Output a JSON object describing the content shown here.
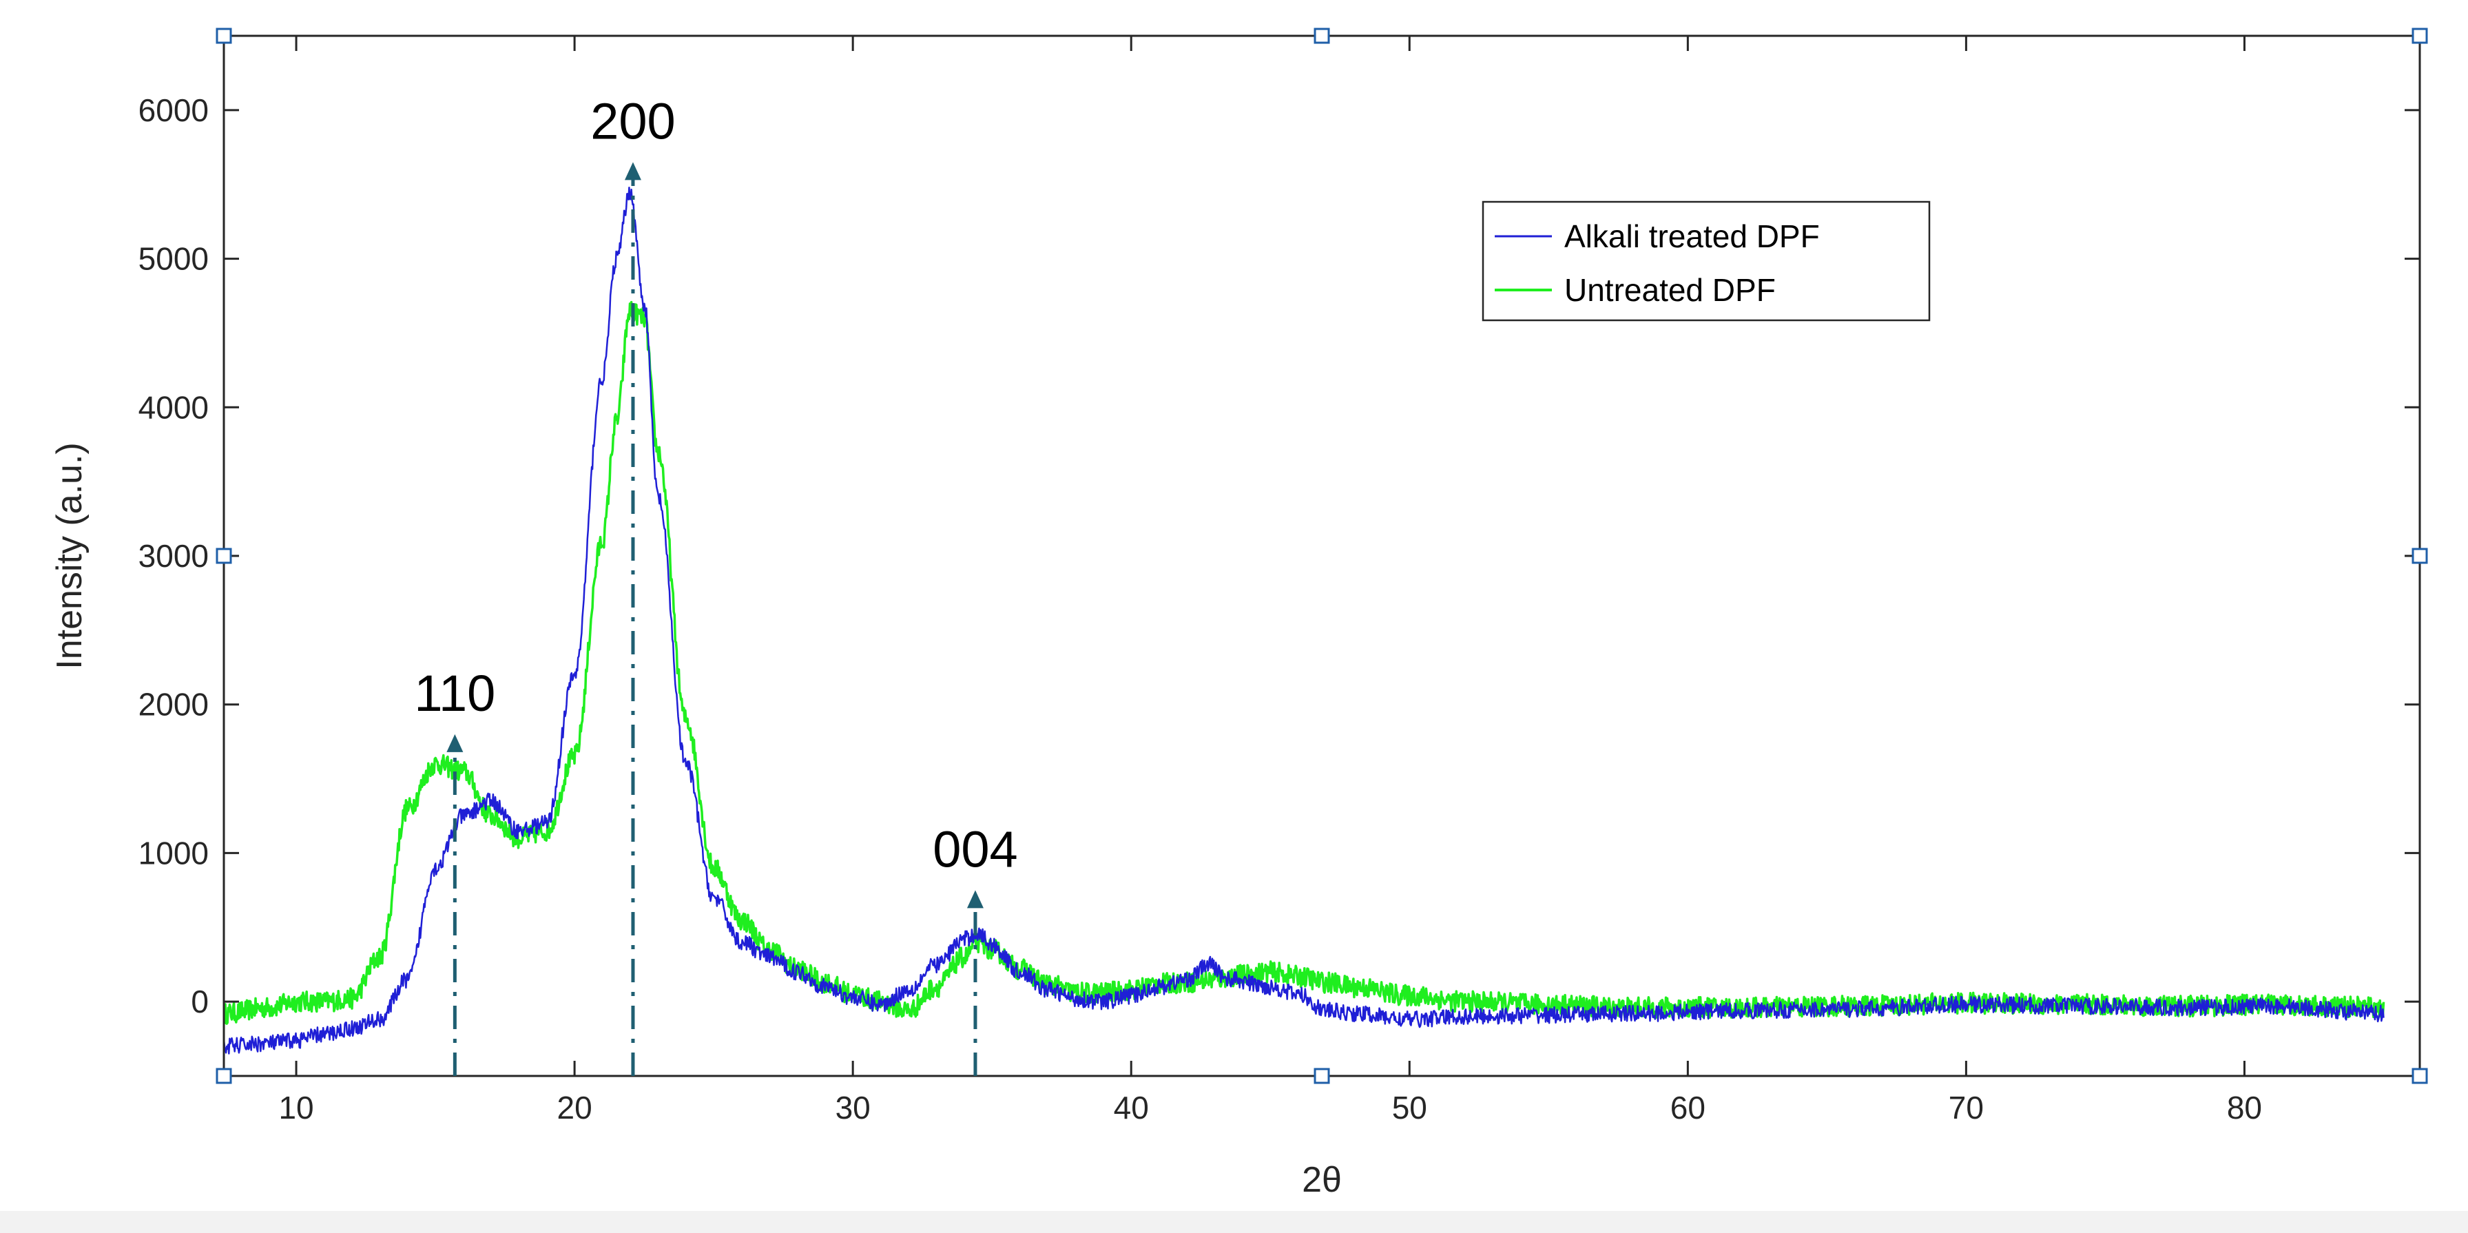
{
  "chart_data": {
    "type": "line",
    "title": "",
    "xlabel": "2θ",
    "ylabel": "Intensity (a.u.)",
    "xlim": [
      7.4,
      86.3
    ],
    "ylim": [
      -500,
      6500
    ],
    "xticks": [
      10,
      20,
      30,
      40,
      50,
      60,
      70,
      80
    ],
    "yticks": [
      0,
      1000,
      2000,
      3000,
      4000,
      5000,
      6000
    ],
    "grid": false,
    "legend_position": "top-right",
    "series": [
      {
        "name": "Alkali treated DPF",
        "color": "#1f1fd6",
        "x": [
          7.4,
          9,
          10,
          11,
          12,
          13,
          14,
          15,
          16,
          17,
          18,
          19,
          20,
          21,
          21.5,
          22,
          22.5,
          23,
          24,
          25,
          26,
          27,
          28,
          29,
          30,
          31,
          32,
          33,
          34,
          34.5,
          35,
          36,
          37,
          38,
          39,
          40,
          41,
          42,
          42.8,
          43.5,
          45,
          46,
          47,
          48,
          50,
          52,
          55,
          58,
          62,
          66,
          70,
          74,
          78,
          81,
          85
        ],
        "y": [
          -300,
          -280,
          -260,
          -220,
          -180,
          -120,
          150,
          900,
          1250,
          1350,
          1150,
          1200,
          2200,
          4200,
          5000,
          5450,
          4700,
          3400,
          1600,
          700,
          400,
          300,
          200,
          100,
          30,
          -20,
          80,
          250,
          420,
          460,
          380,
          200,
          80,
          20,
          0,
          40,
          100,
          150,
          250,
          150,
          100,
          50,
          -60,
          -80,
          -120,
          -100,
          -90,
          -80,
          -60,
          -50,
          -20,
          -30,
          -40,
          -30,
          -80
        ]
      },
      {
        "name": "Untreated DPF",
        "color": "#1fee1f",
        "x": [
          7.4,
          9,
          10,
          11,
          12,
          13,
          14,
          15,
          16,
          17,
          18,
          19,
          20,
          21,
          21.5,
          22,
          22.5,
          23,
          24,
          25,
          26,
          27,
          28,
          29,
          30,
          31,
          32,
          33,
          34,
          34.5,
          35,
          36,
          37,
          38,
          39,
          40,
          41,
          42,
          43,
          44,
          45,
          46,
          47,
          48,
          50,
          52,
          55,
          58,
          62,
          66,
          70,
          74,
          78,
          81,
          85
        ],
        "y": [
          -80,
          -40,
          0,
          0,
          20,
          300,
          1300,
          1600,
          1550,
          1250,
          1100,
          1150,
          1650,
          3100,
          3900,
          4650,
          4600,
          3700,
          1900,
          900,
          550,
          350,
          220,
          130,
          50,
          0,
          -60,
          100,
          300,
          400,
          350,
          220,
          120,
          60,
          60,
          80,
          120,
          130,
          150,
          180,
          200,
          170,
          130,
          100,
          40,
          0,
          -20,
          -40,
          -40,
          -30,
          -10,
          -20,
          -30,
          -20,
          -40
        ]
      }
    ],
    "annotations": [
      {
        "label": "110",
        "x": 15.7,
        "y": 1800
      },
      {
        "label": "200",
        "x": 22.1,
        "y": 5650
      },
      {
        "label": "004",
        "x": 34.4,
        "y": 750
      }
    ]
  }
}
